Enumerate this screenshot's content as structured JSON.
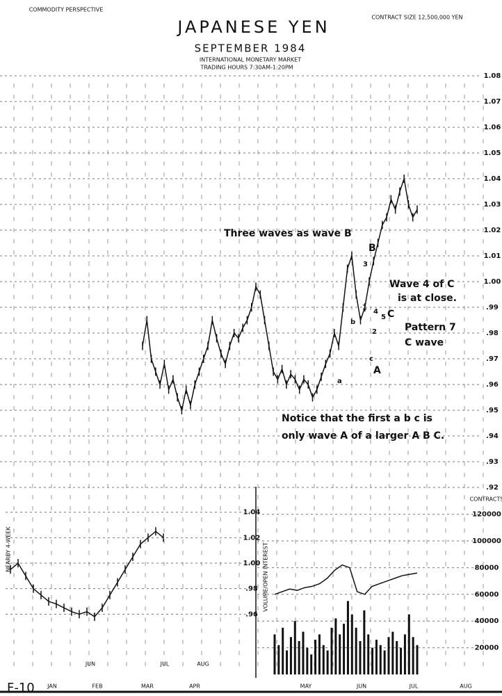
{
  "header": {
    "title": "JAPANESE YEN",
    "subtitle": "SEPTEMBER 1984",
    "market": "INTERNATIONAL MONETARY MARKET",
    "hours": "TRADING HOURS 7:30AM-1:20PM",
    "publisher": "COMMODITY PERSPECTIVE",
    "contract": "CONTRACT SIZE 12,500,000 YEN",
    "page_label": "F-10",
    "contracts_label": "CONTRACTS"
  },
  "time_axis": {
    "months": [
      "JAN",
      "FEB",
      "MAR",
      "APR",
      "MAY",
      "JUN",
      "JUL",
      "AUG"
    ],
    "weekly_months": [
      "JUN",
      "JUL",
      "AUG"
    ]
  },
  "chart_data": [
    {
      "type": "line",
      "color": "#111",
      "values": [
        0.975,
        0.985,
        0.97,
        0.965,
        0.96,
        0.968,
        0.958,
        0.962,
        0.955,
        0.95,
        0.958,
        0.952,
        0.96,
        0.965,
        0.97,
        0.975,
        0.985,
        0.978,
        0.972,
        0.968,
        0.975,
        0.98,
        0.978,
        0.982,
        0.985,
        0.99,
        0.998,
        0.995,
        0.985,
        0.975,
        0.965,
        0.962,
        0.966,
        0.96,
        0.964,
        0.962,
        0.958,
        0.962,
        0.96,
        0.955,
        0.958,
        0.963,
        0.968,
        0.972,
        0.98,
        0.975,
        0.99,
        1.005,
        1.01,
        0.995,
        0.985,
        0.99,
        1.0,
        1.008,
        1.015,
        1.022,
        1.025,
        1.032,
        1.028,
        1.035,
        1.04,
        1.03,
        1.025,
        1.028
      ],
      "ylim": [
        0.915,
        1.09
      ],
      "yticks": [
        1.08,
        1.07,
        1.06,
        1.05,
        1.04,
        1.03,
        1.02,
        1.01,
        {
          "value": 1.0,
          "label": "1.00"
        },
        {
          "value": 0.99,
          "label": ".99"
        },
        {
          "value": 0.98,
          "label": ".98"
        },
        {
          "value": 0.97,
          "label": ".97"
        },
        {
          "value": 0.96,
          "label": ".96"
        },
        {
          "value": 0.95,
          "label": ".95"
        },
        {
          "value": 0.94,
          "label": ".94"
        },
        {
          "value": 0.93,
          "label": ".93"
        },
        {
          "value": 0.92,
          "label": ".92"
        }
      ],
      "grid": true,
      "annotations": [
        "Three waves as wave B",
        "B",
        "Wave 4 of C",
        "is at close.",
        "C",
        "Pattern 7",
        "C wave",
        "A",
        "Notice that the first a b c is",
        "only wave A of a larger A B C.",
        "3",
        "1",
        "b",
        "2",
        "c",
        "a",
        "4",
        "5"
      ]
    },
    {
      "type": "line",
      "color": "#111",
      "y_label": "NEARBY 4-WEEK",
      "values": [
        0.995,
        1.0,
        0.99,
        0.98,
        0.975,
        0.97,
        0.968,
        0.965,
        0.962,
        0.96,
        0.962,
        0.958,
        0.965,
        0.975,
        0.985,
        0.995,
        1.005,
        1.015,
        1.02,
        1.025,
        1.02
      ],
      "ylim": [
        0.94,
        1.06
      ],
      "yticks": [
        {
          "value": 0.96,
          "label": ".96"
        },
        {
          "value": 0.98,
          "label": ".98"
        },
        {
          "value": 1.0,
          "label": "1.00"
        },
        1.02,
        1.04
      ],
      "grid": true
    },
    {
      "type": "bar",
      "y_label": "VOLUME/OPEN INTEREST",
      "series": [
        {
          "type": "bar",
          "color": "#111",
          "values": [
            30000,
            22000,
            35000,
            18000,
            28000,
            40000,
            25000,
            32000,
            20000,
            15000,
            26000,
            30000,
            22000,
            18000,
            35000,
            42000,
            30000,
            38000,
            55000,
            45000,
            35000,
            25000,
            48000,
            30000,
            20000,
            26000,
            22000,
            18000,
            28000,
            32000,
            25000,
            20000,
            30000,
            45000,
            28000,
            22000
          ]
        },
        {
          "type": "line",
          "color": "#111",
          "values": [
            60000,
            62000,
            64000,
            63000,
            65000,
            66000,
            68000,
            72000,
            78000,
            82000,
            80000,
            62000,
            60000,
            66000,
            68000,
            70000,
            72000,
            74000,
            75000,
            76000
          ]
        }
      ],
      "ylim": [
        0,
        125000
      ],
      "yticks": [
        {
          "value": 120000,
          "label": "120000"
        },
        {
          "value": 100000,
          "label": "100000"
        },
        {
          "value": 80000,
          "label": "80000"
        },
        {
          "value": 60000,
          "label": "60000"
        },
        {
          "value": 40000,
          "label": "40000"
        },
        {
          "value": 20000,
          "label": "20000"
        }
      ]
    }
  ]
}
